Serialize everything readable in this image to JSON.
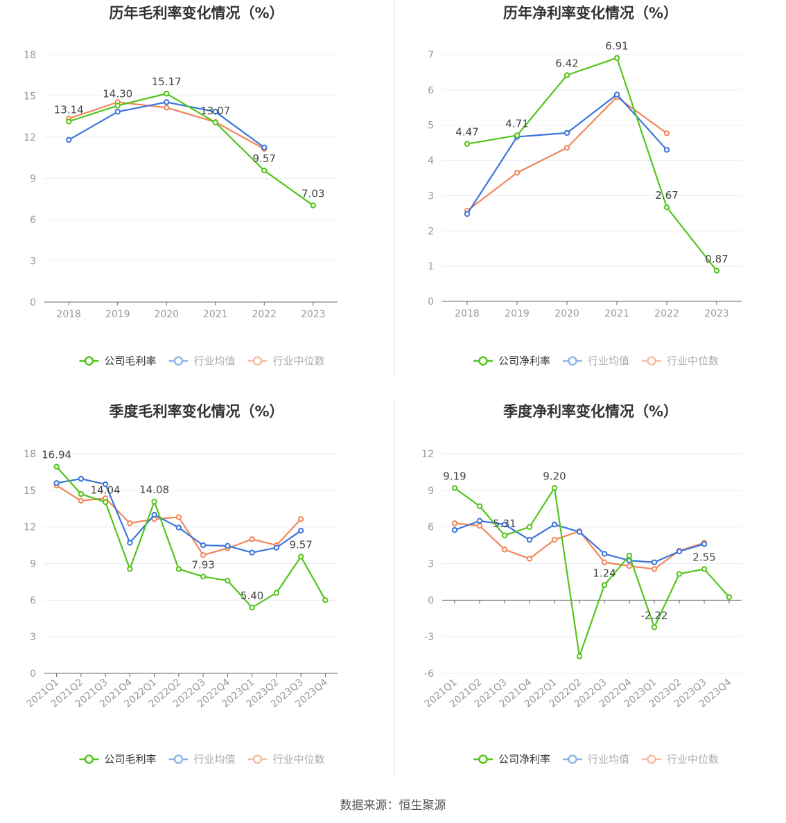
{
  "source": {
    "label": "数据来源：",
    "value": "恒生聚源"
  },
  "legend_labels": {
    "industry_avg": "行业均值",
    "industry_median": "行业中位数"
  },
  "colors": {
    "company": "#52c41a",
    "industry_avg": "#3a75db",
    "industry_median": "#f0875a",
    "grid": "#e8ecf4",
    "axis": "#666666",
    "tick": "#999999"
  },
  "chart_data": [
    {
      "type": "line",
      "title": "历年毛利率变化情况（%）",
      "categories": [
        "2018",
        "2019",
        "2020",
        "2021",
        "2022",
        "2023"
      ],
      "ylim": [
        0,
        18
      ],
      "yticks": [
        0,
        3,
        6,
        9,
        12,
        15,
        18
      ],
      "series": [
        {
          "name": "公司毛利率",
          "key": "company",
          "values": [
            13.14,
            14.3,
            15.17,
            13.07,
            9.57,
            7.03
          ],
          "labels": [
            "13.14",
            "14.30",
            "15.17",
            "13.07",
            "9.57",
            "7.03"
          ]
        },
        {
          "name": "行业均值",
          "key": "industry_avg",
          "values": [
            11.8,
            13.85,
            14.55,
            13.85,
            11.25,
            null
          ]
        },
        {
          "name": "行业中位数",
          "key": "industry_median",
          "values": [
            13.35,
            14.55,
            14.15,
            13.1,
            11.15,
            null
          ]
        }
      ],
      "legend_position": "bottom"
    },
    {
      "type": "line",
      "title": "历年净利率变化情况（%）",
      "categories": [
        "2018",
        "2019",
        "2020",
        "2021",
        "2022",
        "2023"
      ],
      "ylim": [
        0,
        7
      ],
      "yticks": [
        0,
        1,
        2,
        3,
        4,
        5,
        6,
        7
      ],
      "series": [
        {
          "name": "公司净利率",
          "key": "company",
          "values": [
            4.47,
            4.71,
            6.42,
            6.91,
            2.67,
            0.87
          ],
          "labels": [
            "4.47",
            "4.71",
            "6.42",
            "6.91",
            "2.67",
            "0.87"
          ]
        },
        {
          "name": "行业均值",
          "key": "industry_avg",
          "values": [
            2.48,
            4.67,
            4.78,
            5.87,
            4.3,
            null
          ]
        },
        {
          "name": "行业中位数",
          "key": "industry_median",
          "values": [
            2.57,
            3.65,
            4.36,
            5.8,
            4.77,
            null
          ]
        }
      ],
      "legend_position": "bottom"
    },
    {
      "type": "line",
      "title": "季度毛利率变化情况（%）",
      "categories": [
        "2021Q1",
        "2021Q2",
        "2021Q3",
        "2021Q4",
        "2022Q1",
        "2022Q2",
        "2022Q3",
        "2022Q4",
        "2023Q1",
        "2023Q2",
        "2023Q3",
        "2023Q4"
      ],
      "ylim": [
        0,
        18
      ],
      "yticks": [
        0,
        3,
        6,
        9,
        12,
        15,
        18
      ],
      "series": [
        {
          "name": "公司毛利率",
          "key": "company",
          "values": [
            16.94,
            14.7,
            14.04,
            8.55,
            14.08,
            8.55,
            7.93,
            7.6,
            5.4,
            6.6,
            9.57,
            6.0
          ],
          "labels": [
            "16.94",
            "",
            "14.04",
            "",
            "14.08",
            "",
            "7.93",
            "",
            "5.40",
            "",
            "9.57",
            ""
          ]
        },
        {
          "name": "行业均值",
          "key": "industry_avg",
          "values": [
            15.6,
            15.95,
            15.5,
            10.7,
            13.0,
            11.95,
            10.5,
            10.45,
            9.9,
            10.3,
            11.7,
            null
          ]
        },
        {
          "name": "行业中位数",
          "key": "industry_median",
          "values": [
            15.4,
            14.15,
            14.35,
            12.3,
            12.65,
            12.8,
            9.7,
            10.25,
            11.0,
            10.5,
            12.65,
            null
          ]
        }
      ],
      "legend_position": "bottom"
    },
    {
      "type": "line",
      "title": "季度净利率变化情况（%）",
      "categories": [
        "2021Q1",
        "2021Q2",
        "2021Q3",
        "2021Q4",
        "2022Q1",
        "2022Q2",
        "2022Q3",
        "2022Q4",
        "2023Q1",
        "2023Q2",
        "2023Q3",
        "2023Q4"
      ],
      "ylim": [
        -6,
        12
      ],
      "yticks": [
        -6,
        -3,
        0,
        3,
        6,
        9,
        12
      ],
      "series": [
        {
          "name": "公司净利率",
          "key": "company",
          "values": [
            9.19,
            7.7,
            5.31,
            6.0,
            9.2,
            -4.6,
            1.24,
            3.65,
            -2.22,
            2.15,
            2.55,
            0.25
          ],
          "labels": [
            "9.19",
            "",
            "5.31",
            "",
            "9.20",
            "",
            "1.24",
            "",
            "-2.22",
            "",
            "2.55",
            ""
          ]
        },
        {
          "name": "行业均值",
          "key": "industry_avg",
          "values": [
            5.75,
            6.5,
            6.2,
            4.95,
            6.2,
            5.6,
            3.8,
            3.25,
            3.1,
            4.0,
            4.6,
            null
          ]
        },
        {
          "name": "行业中位数",
          "key": "industry_median",
          "values": [
            6.3,
            6.1,
            4.15,
            3.4,
            4.95,
            5.65,
            3.1,
            2.8,
            2.55,
            4.05,
            4.7,
            null
          ]
        }
      ],
      "legend_position": "bottom"
    }
  ]
}
